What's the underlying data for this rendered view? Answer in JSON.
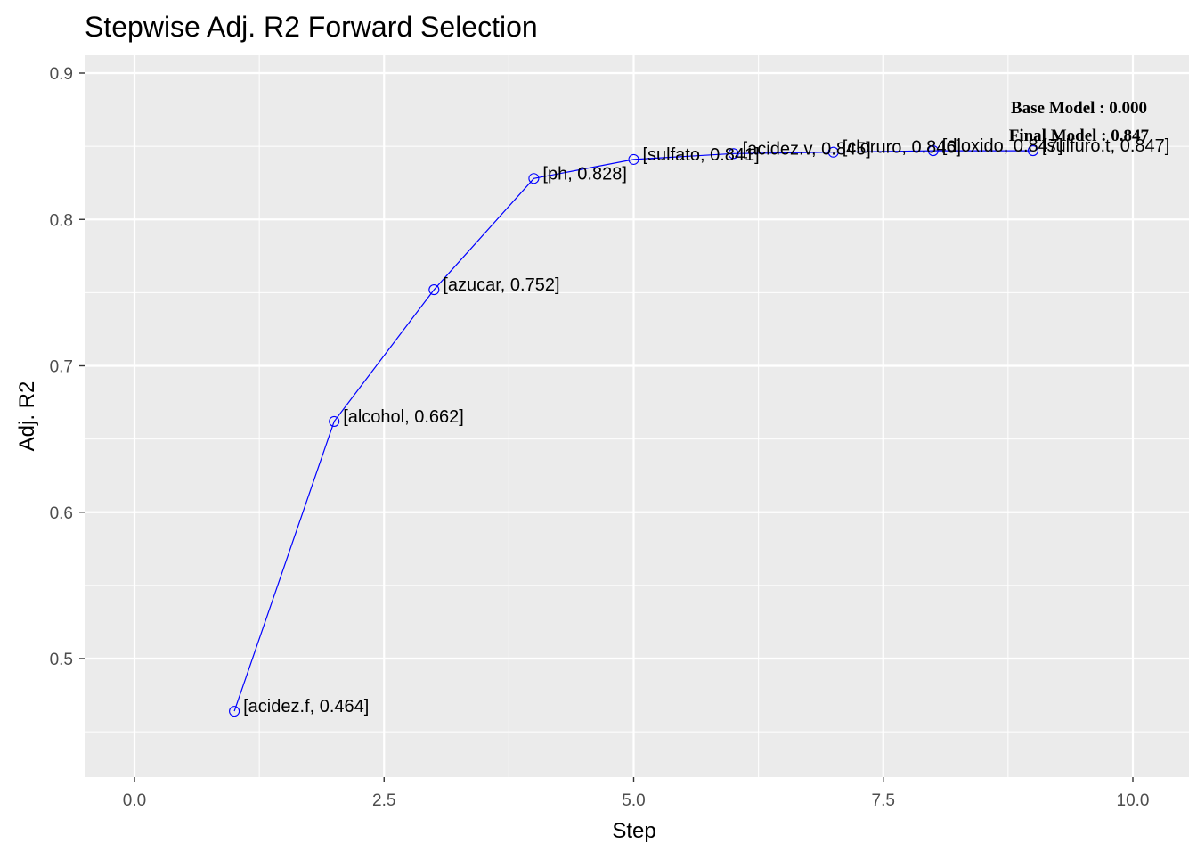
{
  "colors": {
    "panel_background": "#EBEBEB",
    "grid_major": "#FFFFFF",
    "line": "#0000FF",
    "point_stroke": "#0000FF"
  },
  "chart_data": {
    "type": "line",
    "title": "Stepwise Adj. R2 Forward Selection",
    "xlabel": "Step",
    "ylabel": "Adj. R2",
    "xlim": [
      -0.5,
      10.5
    ],
    "ylim": [
      0.42,
      0.92
    ],
    "x_ticks": [
      "0.0",
      "2.5",
      "5.0",
      "7.5",
      "10.0"
    ],
    "y_ticks": [
      "0.5",
      "0.6",
      "0.7",
      "0.8",
      "0.9"
    ],
    "grid": true,
    "series": [
      {
        "x": [
          1,
          2,
          3,
          4,
          5,
          6,
          7,
          8,
          9
        ],
        "values": [
          0.464,
          0.662,
          0.752,
          0.828,
          0.841,
          0.845,
          0.846,
          0.847,
          0.847
        ]
      }
    ],
    "point_labels": [
      "[acidez.f, 0.464]",
      "[alcohol, 0.662]",
      "[azucar, 0.752]",
      "[ph, 0.828]",
      "[sulfato, 0.841]",
      "[acidez.v, 0.845]",
      "[cloruro, 0.846]",
      "[dioxido, 0.847]",
      "[sulfuro.t, 0.847]"
    ],
    "annotations": [
      "Base Model  : 0.000",
      "Final Model : 0.847"
    ]
  }
}
